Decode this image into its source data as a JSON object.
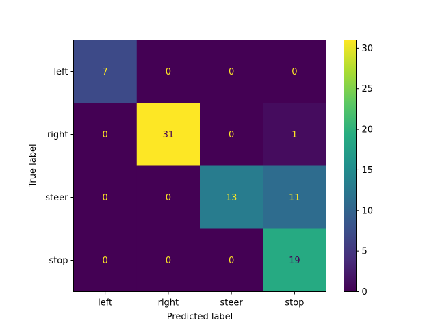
{
  "chart_data": {
    "type": "heatmap",
    "title": "",
    "xlabel": "Predicted label",
    "ylabel": "True label",
    "x_categories": [
      "left",
      "right",
      "steer",
      "stop"
    ],
    "y_categories": [
      "left",
      "right",
      "steer",
      "stop"
    ],
    "values": [
      [
        7,
        0,
        0,
        0
      ],
      [
        0,
        31,
        0,
        1
      ],
      [
        0,
        0,
        13,
        11
      ],
      [
        0,
        0,
        0,
        19
      ]
    ],
    "colormap": "viridis",
    "colorbar": {
      "range": [
        0,
        31
      ],
      "ticks": [
        0,
        5,
        10,
        15,
        20,
        25,
        30
      ]
    },
    "text_colors": {
      "light": "#fde725",
      "dark": "#440154"
    },
    "grid": false,
    "legend": "none"
  }
}
